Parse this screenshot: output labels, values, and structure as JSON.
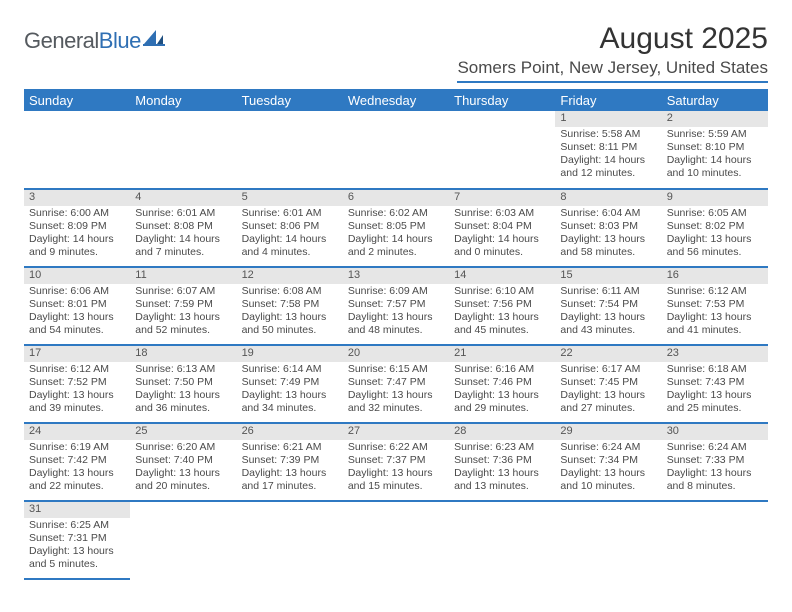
{
  "logo": {
    "word1": "General",
    "word2": "Blue"
  },
  "title": "August 2025",
  "location": "Somers Point, New Jersey, United States",
  "colors": {
    "header_bg": "#2f79c2",
    "header_text": "#ffffff",
    "daynum_bg": "#e6e6e6",
    "rule": "#2f79c2",
    "text": "#4a4a4a"
  },
  "dayHeaders": [
    "Sunday",
    "Monday",
    "Tuesday",
    "Wednesday",
    "Thursday",
    "Friday",
    "Saturday"
  ],
  "weeks": [
    [
      null,
      null,
      null,
      null,
      null,
      {
        "n": "1",
        "sr": "5:58 AM",
        "ss": "8:11 PM",
        "dl": "14 hours and 12 minutes."
      },
      {
        "n": "2",
        "sr": "5:59 AM",
        "ss": "8:10 PM",
        "dl": "14 hours and 10 minutes."
      }
    ],
    [
      {
        "n": "3",
        "sr": "6:00 AM",
        "ss": "8:09 PM",
        "dl": "14 hours and 9 minutes."
      },
      {
        "n": "4",
        "sr": "6:01 AM",
        "ss": "8:08 PM",
        "dl": "14 hours and 7 minutes."
      },
      {
        "n": "5",
        "sr": "6:01 AM",
        "ss": "8:06 PM",
        "dl": "14 hours and 4 minutes."
      },
      {
        "n": "6",
        "sr": "6:02 AM",
        "ss": "8:05 PM",
        "dl": "14 hours and 2 minutes."
      },
      {
        "n": "7",
        "sr": "6:03 AM",
        "ss": "8:04 PM",
        "dl": "14 hours and 0 minutes."
      },
      {
        "n": "8",
        "sr": "6:04 AM",
        "ss": "8:03 PM",
        "dl": "13 hours and 58 minutes."
      },
      {
        "n": "9",
        "sr": "6:05 AM",
        "ss": "8:02 PM",
        "dl": "13 hours and 56 minutes."
      }
    ],
    [
      {
        "n": "10",
        "sr": "6:06 AM",
        "ss": "8:01 PM",
        "dl": "13 hours and 54 minutes."
      },
      {
        "n": "11",
        "sr": "6:07 AM",
        "ss": "7:59 PM",
        "dl": "13 hours and 52 minutes."
      },
      {
        "n": "12",
        "sr": "6:08 AM",
        "ss": "7:58 PM",
        "dl": "13 hours and 50 minutes."
      },
      {
        "n": "13",
        "sr": "6:09 AM",
        "ss": "7:57 PM",
        "dl": "13 hours and 48 minutes."
      },
      {
        "n": "14",
        "sr": "6:10 AM",
        "ss": "7:56 PM",
        "dl": "13 hours and 45 minutes."
      },
      {
        "n": "15",
        "sr": "6:11 AM",
        "ss": "7:54 PM",
        "dl": "13 hours and 43 minutes."
      },
      {
        "n": "16",
        "sr": "6:12 AM",
        "ss": "7:53 PM",
        "dl": "13 hours and 41 minutes."
      }
    ],
    [
      {
        "n": "17",
        "sr": "6:12 AM",
        "ss": "7:52 PM",
        "dl": "13 hours and 39 minutes."
      },
      {
        "n": "18",
        "sr": "6:13 AM",
        "ss": "7:50 PM",
        "dl": "13 hours and 36 minutes."
      },
      {
        "n": "19",
        "sr": "6:14 AM",
        "ss": "7:49 PM",
        "dl": "13 hours and 34 minutes."
      },
      {
        "n": "20",
        "sr": "6:15 AM",
        "ss": "7:47 PM",
        "dl": "13 hours and 32 minutes."
      },
      {
        "n": "21",
        "sr": "6:16 AM",
        "ss": "7:46 PM",
        "dl": "13 hours and 29 minutes."
      },
      {
        "n": "22",
        "sr": "6:17 AM",
        "ss": "7:45 PM",
        "dl": "13 hours and 27 minutes."
      },
      {
        "n": "23",
        "sr": "6:18 AM",
        "ss": "7:43 PM",
        "dl": "13 hours and 25 minutes."
      }
    ],
    [
      {
        "n": "24",
        "sr": "6:19 AM",
        "ss": "7:42 PM",
        "dl": "13 hours and 22 minutes."
      },
      {
        "n": "25",
        "sr": "6:20 AM",
        "ss": "7:40 PM",
        "dl": "13 hours and 20 minutes."
      },
      {
        "n": "26",
        "sr": "6:21 AM",
        "ss": "7:39 PM",
        "dl": "13 hours and 17 minutes."
      },
      {
        "n": "27",
        "sr": "6:22 AM",
        "ss": "7:37 PM",
        "dl": "13 hours and 15 minutes."
      },
      {
        "n": "28",
        "sr": "6:23 AM",
        "ss": "7:36 PM",
        "dl": "13 hours and 13 minutes."
      },
      {
        "n": "29",
        "sr": "6:24 AM",
        "ss": "7:34 PM",
        "dl": "13 hours and 10 minutes."
      },
      {
        "n": "30",
        "sr": "6:24 AM",
        "ss": "7:33 PM",
        "dl": "13 hours and 8 minutes."
      }
    ],
    [
      {
        "n": "31",
        "sr": "6:25 AM",
        "ss": "7:31 PM",
        "dl": "13 hours and 5 minutes."
      },
      null,
      null,
      null,
      null,
      null,
      null
    ]
  ],
  "labels": {
    "sunrise": "Sunrise:",
    "sunset": "Sunset:",
    "daylight": "Daylight:"
  }
}
